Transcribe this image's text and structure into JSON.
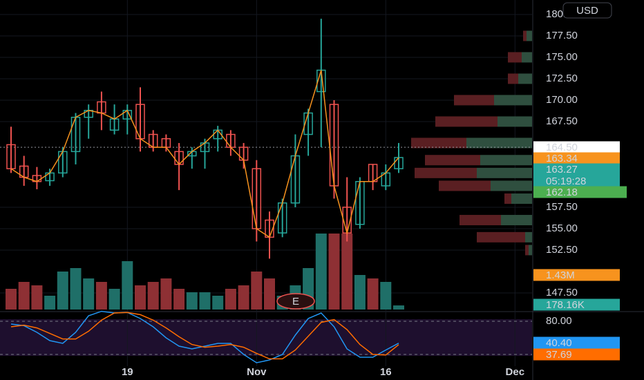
{
  "chart_data": {
    "type": "candlestick",
    "currency": "USD",
    "categories": [
      null,
      null,
      null,
      null,
      null,
      null,
      null,
      null,
      null,
      "19",
      null,
      null,
      null,
      null,
      null,
      null,
      null,
      null,
      null,
      "Nov",
      null,
      null,
      null,
      null,
      null,
      null,
      null,
      null,
      null,
      "16",
      null,
      null,
      null,
      null,
      null,
      null,
      null,
      null,
      null,
      "Dec"
    ],
    "open": [
      164.8,
      162.3,
      161.2,
      160.6,
      161.5,
      164.0,
      168.0,
      169.8,
      166.5,
      167.8,
      169.5,
      166.0,
      165.5,
      164.0,
      163.5,
      164.0,
      165.5,
      166.0,
      164.5,
      162.0,
      156.0,
      154.5,
      158.0,
      166.0,
      171.0,
      169.5,
      157.5,
      155.5,
      162.5,
      160.0,
      162.0,
      null,
      null,
      null,
      null,
      null,
      null,
      null,
      null,
      null
    ],
    "high": [
      166.9,
      163.5,
      162.2,
      162.0,
      164.5,
      168.5,
      169.5,
      171.0,
      169.5,
      169.5,
      171.5,
      166.5,
      166.0,
      165.0,
      164.5,
      165.5,
      167.0,
      166.5,
      165.0,
      163.0,
      157.0,
      158.5,
      166.0,
      169.0,
      179.5,
      170.0,
      161.0,
      161.0,
      162.5,
      162.5,
      165.0,
      null,
      null,
      null,
      null,
      null,
      null,
      null,
      null,
      null
    ],
    "low": [
      161.5,
      160.0,
      159.6,
      160.0,
      161.0,
      162.5,
      165.5,
      166.5,
      166.0,
      166.0,
      164.0,
      164.0,
      164.0,
      159.5,
      162.0,
      162.0,
      164.0,
      163.5,
      162.0,
      153.5,
      151.5,
      154.0,
      157.5,
      163.5,
      164.5,
      158.5,
      153.5,
      155.0,
      159.5,
      159.5,
      161.5,
      null,
      null,
      null,
      null,
      null,
      null,
      null,
      null,
      null
    ],
    "close": [
      162.0,
      161.0,
      160.5,
      161.5,
      164.0,
      168.0,
      168.8,
      168.5,
      167.8,
      168.8,
      165.5,
      164.5,
      164.5,
      162.5,
      164.0,
      165.0,
      166.5,
      164.5,
      163.0,
      155.0,
      154.0,
      158.0,
      163.5,
      168.5,
      173.5,
      160.0,
      154.5,
      160.5,
      160.5,
      161.5,
      163.3,
      null,
      null,
      null,
      null,
      null,
      null,
      null,
      null,
      null
    ],
    "up_color": "#26a69a",
    "down_color": "#ef5350",
    "line_color": "#f7931e",
    "ylim": [
      145.56,
      181.69
    ],
    "yticks": [
      {
        "value": 180,
        "label": "180.00"
      },
      {
        "value": 177.5,
        "label": "177.50"
      },
      {
        "value": 175,
        "label": "175.00"
      },
      {
        "value": 172.5,
        "label": "172.50"
      },
      {
        "value": 170,
        "label": "170.00"
      },
      {
        "value": 167.5,
        "label": "167.50"
      },
      {
        "value": 157.5,
        "label": "157.50"
      },
      {
        "value": 155,
        "label": "155.00"
      },
      {
        "value": 152.5,
        "label": "152.50"
      },
      {
        "value": 147.5,
        "label": "147.50"
      }
    ],
    "last_price": 164.5,
    "volume": [
      900000,
      1200000,
      1050000,
      600000,
      1650000,
      1800000,
      1350000,
      1200000,
      900000,
      2100000,
      1050000,
      1200000,
      1350000,
      900000,
      750000,
      750000,
      600000,
      900000,
      1050000,
      1650000,
      1350000,
      600000,
      1050000,
      1800000,
      3300000,
      3300000,
      3300000,
      1500000,
      1350000,
      1200000,
      178160,
      null,
      null,
      null,
      null,
      null,
      null,
      null,
      null,
      null
    ],
    "volume_lim": [
      0,
      13440000
    ],
    "volume_up_color": "#1f6f68",
    "volume_down_color": "#8e3034",
    "earnings_marker": "E",
    "profile": {
      "prices": [
        177.5,
        175,
        172.5,
        170,
        167.5,
        165,
        163,
        161.5,
        160,
        158.5,
        156,
        154,
        152.5
      ],
      "up": [
        8,
        15,
        20,
        55,
        50,
        95,
        75,
        80,
        60,
        30,
        45,
        10,
        5
      ],
      "down": [
        5,
        20,
        15,
        58,
        90,
        80,
        80,
        90,
        75,
        10,
        60,
        70,
        5
      ],
      "up_color": "#2f4f3f",
      "down_color": "#5a1f22"
    },
    "tags": [
      {
        "text": "164.50",
        "color": "#ffffff"
      },
      {
        "text": "163.34",
        "color": "#f7931e"
      },
      {
        "text": "163.27",
        "color": "#26a69a"
      },
      {
        "text": "05:19:28",
        "color": "#26a69a"
      },
      {
        "text": "162.18",
        "color": "#4caf50"
      },
      {
        "text": "1.43M",
        "color": "#f7931e"
      },
      {
        "text": "178.16K",
        "color": "#26a69a"
      },
      {
        "text": "40.40",
        "color": "#2196f3"
      },
      {
        "text": "37.69",
        "color": "#ff6d00"
      }
    ],
    "stoch_k": [
      75,
      72,
      60,
      45,
      40,
      60,
      90,
      98,
      95,
      96,
      85,
      70,
      50,
      35,
      30,
      35,
      40,
      40,
      20,
      5,
      10,
      20,
      55,
      85,
      95,
      70,
      30,
      15,
      15,
      28,
      40.4,
      null,
      null,
      null,
      null,
      null,
      null,
      null,
      null,
      null
    ],
    "stoch_d": [
      70,
      73,
      68,
      58,
      48,
      48,
      62,
      82,
      95,
      96,
      92,
      82,
      68,
      52,
      38,
      33,
      35,
      38,
      33,
      22,
      12,
      12,
      28,
      53,
      78,
      83,
      65,
      38,
      20,
      19,
      37.69,
      null,
      null,
      null,
      null,
      null,
      null,
      null,
      null,
      null
    ],
    "stoch_k_color": "#2196f3",
    "stoch_d_color": "#ff6d00",
    "stoch_ylim": [
      0,
      100
    ],
    "stoch_yticks": [
      {
        "value": 80,
        "label": "80.00"
      }
    ],
    "stoch_bands": [
      80,
      20
    ]
  }
}
